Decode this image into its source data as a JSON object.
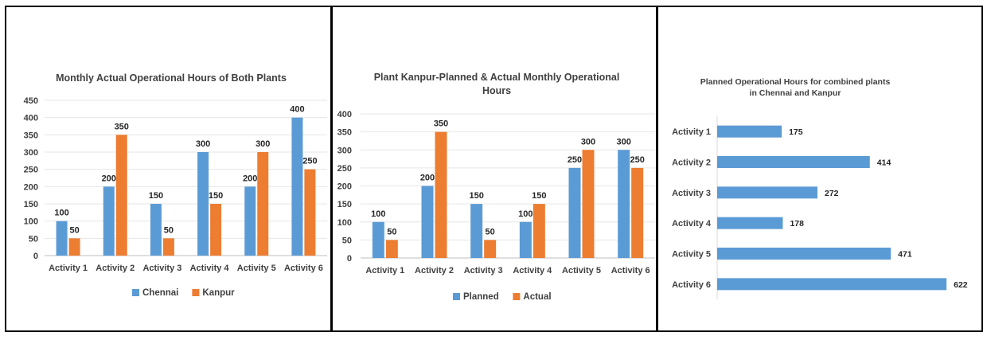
{
  "chart_data": [
    {
      "type": "bar",
      "title": "Monthly Actual Operational Hours of Both Plants",
      "categories": [
        "Activity 1",
        "Activity 2",
        "Activity 3",
        "Activity 4",
        "Activity 5",
        "Activity 6"
      ],
      "series": [
        {
          "name": "Chennai",
          "values": [
            100,
            200,
            150,
            300,
            200,
            400
          ]
        },
        {
          "name": "Kanpur",
          "values": [
            50,
            350,
            50,
            150,
            300,
            250
          ]
        }
      ],
      "yticks": [
        "0",
        "50",
        "100",
        "150",
        "200",
        "250",
        "300",
        "350",
        "400",
        "450"
      ],
      "ylim": [
        0,
        450
      ],
      "grid": true,
      "legend": "bottom",
      "colors": [
        "#5b9bd5",
        "#ed7d31"
      ]
    },
    {
      "type": "bar",
      "title": "Plant Kanpur-Planned & Actual Monthly Operational Hours",
      "title_lines": [
        "Plant Kanpur-Planned & Actual Monthly Operational",
        "Hours"
      ],
      "categories": [
        "Activity 1",
        "Activity 2",
        "Activity 3",
        "Activity 4",
        "Activity 5",
        "Activity 6"
      ],
      "series": [
        {
          "name": "Planned",
          "values": [
            100,
            200,
            150,
            100,
            250,
            300
          ]
        },
        {
          "name": "Actual",
          "values": [
            50,
            350,
            50,
            150,
            300,
            250
          ]
        }
      ],
      "yticks": [
        "0",
        "50",
        "100",
        "150",
        "200",
        "250",
        "300",
        "350",
        "400"
      ],
      "ylim": [
        0,
        400
      ],
      "grid": true,
      "legend": "bottom",
      "colors": [
        "#5b9bd5",
        "#ed7d31"
      ]
    },
    {
      "type": "bar",
      "orientation": "horizontal",
      "title": "Planned Operational Hours for combined plants in Chennai and Kanpur",
      "title_lines": [
        "Planned Operational Hours for combined plants",
        "in Chennai and Kanpur"
      ],
      "categories": [
        "Activity 1",
        "Activity 2",
        "Activity 3",
        "Activity 4",
        "Activity 5",
        "Activity 6"
      ],
      "values": [
        175,
        414,
        272,
        178,
        471,
        622
      ],
      "grid": false,
      "colors": [
        "#5b9bd5"
      ]
    }
  ]
}
